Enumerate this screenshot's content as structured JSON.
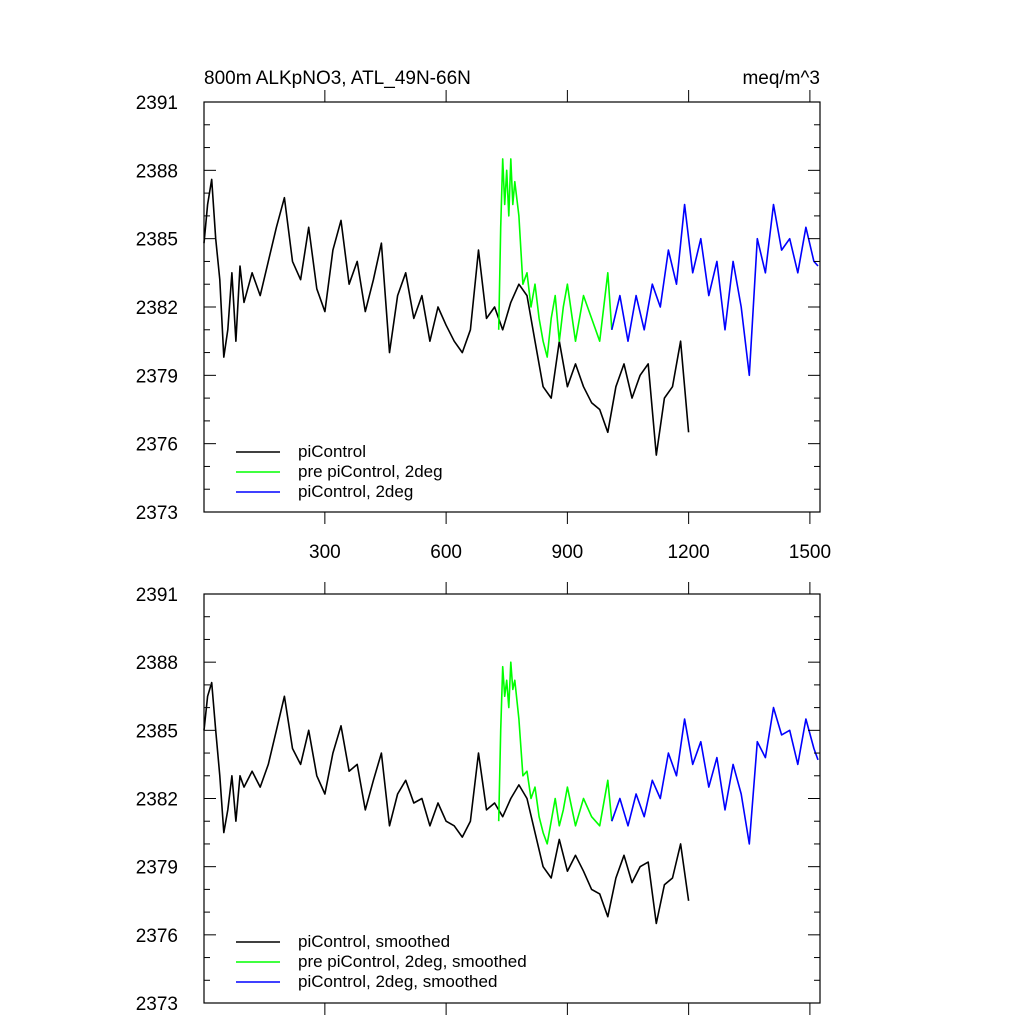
{
  "chart_data": [
    {
      "type": "line",
      "title": "800m ALKpNO3, ATL_49N-66N",
      "units": "meq/m^3",
      "xlim": [
        1,
        1525
      ],
      "ylim": [
        2373,
        2391
      ],
      "yticks": [
        "2373",
        "2376",
        "2379",
        "2382",
        "2385",
        "2388",
        "2391"
      ],
      "xticks": [
        "300",
        "600",
        "900",
        "1200",
        "1500"
      ],
      "series": [
        {
          "name": "piControl",
          "color": "#000000",
          "x": [
            1,
            10,
            20,
            30,
            40,
            50,
            60,
            70,
            80,
            90,
            100,
            120,
            140,
            160,
            180,
            200,
            220,
            240,
            260,
            280,
            300,
            320,
            340,
            360,
            380,
            400,
            420,
            440,
            460,
            480,
            500,
            520,
            540,
            560,
            580,
            600,
            620,
            640,
            660,
            680,
            700,
            720,
            740,
            760,
            780,
            800,
            820,
            840,
            860,
            880,
            900,
            920,
            940,
            960,
            980,
            1000,
            1020,
            1040,
            1060,
            1080,
            1100,
            1120,
            1140,
            1160,
            1180,
            1200
          ],
          "y": [
            2384.8,
            2386.5,
            2387.6,
            2385.0,
            2383.2,
            2379.8,
            2381.0,
            2383.5,
            2380.5,
            2383.8,
            2382.2,
            2383.5,
            2382.5,
            2384.0,
            2385.5,
            2386.8,
            2384.0,
            2383.2,
            2385.5,
            2382.8,
            2381.8,
            2384.5,
            2385.8,
            2383.0,
            2384.0,
            2381.8,
            2383.2,
            2384.8,
            2380.0,
            2382.5,
            2383.5,
            2381.5,
            2382.5,
            2380.5,
            2382.0,
            2381.2,
            2380.5,
            2380.0,
            2381.0,
            2384.5,
            2381.5,
            2382.0,
            2381.0,
            2382.2,
            2383.0,
            2382.5,
            2380.5,
            2378.5,
            2378.0,
            2380.5,
            2378.5,
            2379.5,
            2378.5,
            2377.8,
            2377.5,
            2376.5,
            2378.5,
            2379.5,
            2378.0,
            2379.0,
            2379.5,
            2375.5,
            2378.0,
            2378.5,
            2380.5,
            2376.5
          ]
        },
        {
          "name": "pre piControl, 2deg",
          "color": "#00ff00",
          "x": [
            730,
            735,
            740,
            745,
            750,
            755,
            760,
            765,
            770,
            780,
            790,
            800,
            810,
            820,
            830,
            840,
            850,
            860,
            870,
            880,
            890,
            900,
            920,
            940,
            960,
            980,
            1000,
            1010
          ],
          "y": [
            2381.0,
            2385.5,
            2388.5,
            2386.5,
            2388.0,
            2386.0,
            2388.5,
            2386.5,
            2387.5,
            2386.0,
            2383.0,
            2383.5,
            2382.0,
            2383.0,
            2381.5,
            2380.5,
            2379.8,
            2381.5,
            2382.5,
            2380.5,
            2382.0,
            2383.0,
            2380.5,
            2382.5,
            2381.5,
            2380.5,
            2383.5,
            2381.0
          ]
        },
        {
          "name": "piControl, 2deg",
          "color": "#0000ff",
          "x": [
            1010,
            1030,
            1050,
            1070,
            1090,
            1110,
            1130,
            1150,
            1170,
            1190,
            1210,
            1230,
            1250,
            1270,
            1290,
            1310,
            1330,
            1350,
            1370,
            1390,
            1410,
            1430,
            1450,
            1470,
            1490,
            1510,
            1520
          ],
          "y": [
            2381.0,
            2382.5,
            2380.5,
            2382.5,
            2381.0,
            2383.0,
            2382.0,
            2384.5,
            2383.0,
            2386.5,
            2383.5,
            2385.0,
            2382.5,
            2384.0,
            2381.0,
            2384.0,
            2382.0,
            2379.0,
            2385.0,
            2383.5,
            2386.5,
            2384.5,
            2385.0,
            2383.5,
            2385.5,
            2384.0,
            2383.8
          ]
        }
      ],
      "legend": {
        "entries": [
          "piControl",
          "pre piControl, 2deg",
          "piControl, 2deg"
        ],
        "placement": "bottom-left"
      }
    },
    {
      "type": "line",
      "title": "",
      "xlim": [
        1,
        1525
      ],
      "ylim": [
        2373,
        2391
      ],
      "yticks": [
        "2373",
        "2376",
        "2379",
        "2382",
        "2385",
        "2388",
        "2391"
      ],
      "series": [
        {
          "name": "piControl, smoothed",
          "color": "#000000",
          "x": [
            1,
            10,
            20,
            30,
            40,
            50,
            60,
            70,
            80,
            90,
            100,
            120,
            140,
            160,
            180,
            200,
            220,
            240,
            260,
            280,
            300,
            320,
            340,
            360,
            380,
            400,
            420,
            440,
            460,
            480,
            500,
            520,
            540,
            560,
            580,
            600,
            620,
            640,
            660,
            680,
            700,
            720,
            740,
            760,
            780,
            800,
            820,
            840,
            860,
            880,
            900,
            920,
            940,
            960,
            980,
            1000,
            1020,
            1040,
            1060,
            1080,
            1100,
            1120,
            1140,
            1160,
            1180,
            1200
          ],
          "y": [
            2385.0,
            2386.5,
            2387.1,
            2385.0,
            2383.0,
            2380.5,
            2381.5,
            2383.0,
            2381.0,
            2383.0,
            2382.5,
            2383.2,
            2382.5,
            2383.5,
            2385.0,
            2386.5,
            2384.2,
            2383.5,
            2385.0,
            2383.0,
            2382.2,
            2384.0,
            2385.2,
            2383.2,
            2383.5,
            2381.5,
            2382.8,
            2384.0,
            2380.8,
            2382.2,
            2382.8,
            2381.8,
            2382.0,
            2380.8,
            2381.8,
            2381.0,
            2380.8,
            2380.3,
            2381.0,
            2384.0,
            2381.5,
            2381.8,
            2381.2,
            2382.0,
            2382.6,
            2382.0,
            2380.5,
            2379.0,
            2378.5,
            2380.2,
            2378.8,
            2379.5,
            2378.8,
            2378.0,
            2377.8,
            2376.8,
            2378.5,
            2379.5,
            2378.3,
            2379.0,
            2379.2,
            2376.5,
            2378.2,
            2378.5,
            2380.0,
            2377.5
          ]
        },
        {
          "name": "pre piControl, 2deg, smoothed",
          "color": "#00ff00",
          "x": [
            730,
            735,
            740,
            745,
            750,
            755,
            760,
            765,
            770,
            780,
            790,
            800,
            810,
            820,
            830,
            840,
            850,
            860,
            870,
            880,
            890,
            900,
            920,
            940,
            960,
            980,
            1000,
            1010
          ],
          "y": [
            2381.0,
            2385.0,
            2387.8,
            2386.5,
            2387.2,
            2386.0,
            2388.0,
            2386.8,
            2387.2,
            2385.5,
            2383.0,
            2383.2,
            2382.0,
            2382.5,
            2381.2,
            2380.5,
            2380.0,
            2381.0,
            2382.0,
            2380.8,
            2381.5,
            2382.5,
            2380.8,
            2382.0,
            2381.2,
            2380.8,
            2382.8,
            2381.0
          ]
        },
        {
          "name": "piControl, 2deg, smoothed",
          "color": "#0000ff",
          "x": [
            1010,
            1030,
            1050,
            1070,
            1090,
            1110,
            1130,
            1150,
            1170,
            1190,
            1210,
            1230,
            1250,
            1270,
            1290,
            1310,
            1330,
            1350,
            1370,
            1390,
            1410,
            1430,
            1450,
            1470,
            1490,
            1510,
            1520
          ],
          "y": [
            2381.0,
            2382.0,
            2380.8,
            2382.2,
            2381.2,
            2382.8,
            2382.0,
            2384.0,
            2383.0,
            2385.5,
            2383.5,
            2384.5,
            2382.5,
            2383.8,
            2381.5,
            2383.5,
            2382.2,
            2380.0,
            2384.5,
            2383.8,
            2386.0,
            2384.8,
            2385.0,
            2383.5,
            2385.5,
            2384.2,
            2383.7
          ]
        }
      ],
      "legend": {
        "entries": [
          "piControl, smoothed",
          "pre piControl, 2deg, smoothed",
          "piControl, 2deg, smoothed"
        ],
        "placement": "bottom-left"
      }
    }
  ]
}
